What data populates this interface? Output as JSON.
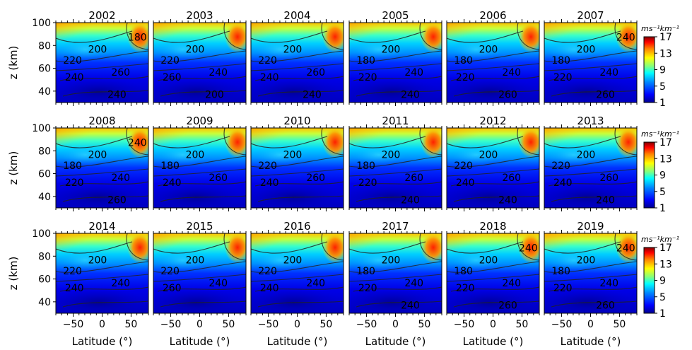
{
  "chart_data": {
    "type": "heatmap",
    "description_units": "zonal-mean field vs latitude and altitude with temperature contours",
    "years": [
      "2002",
      "2003",
      "2004",
      "2005",
      "2006",
      "2007",
      "2008",
      "2009",
      "2010",
      "2011",
      "2012",
      "2013",
      "2014",
      "2015",
      "2016",
      "2017",
      "2018",
      "2019"
    ],
    "rows": 3,
    "cols": 6,
    "xlabel": "Latitude (°)",
    "ylabel": "z (km)",
    "xlim": [
      -80,
      80
    ],
    "ylim": [
      30,
      100
    ],
    "xticks": [
      "-50",
      "0",
      "50"
    ],
    "yticks": [
      "40",
      "60",
      "80",
      "100"
    ],
    "colorbar": {
      "unit": "ms⁻¹km⁻¹",
      "ticks": [
        "1",
        "5",
        "9",
        "13",
        "17"
      ],
      "range": [
        1,
        17
      ],
      "colormap": [
        "#00008f",
        "#0000ff",
        "#0080ff",
        "#00ffff",
        "#80ff80",
        "#ffff00",
        "#ff8000",
        "#ff0000",
        "#800000"
      ]
    },
    "contour_labels": [
      {
        "year": "2002",
        "labels": [
          "200",
          "220",
          "240",
          "260",
          "240",
          "180"
        ]
      },
      {
        "year": "2003",
        "labels": [
          "200",
          "220",
          "260",
          "240",
          "200"
        ]
      },
      {
        "year": "2004",
        "labels": [
          "200",
          "220",
          "240",
          "260",
          "240"
        ]
      },
      {
        "year": "2005",
        "labels": [
          "200",
          "180",
          "220",
          "240",
          "240"
        ]
      },
      {
        "year": "2006",
        "labels": [
          "200",
          "180",
          "220",
          "240",
          "260"
        ]
      },
      {
        "year": "2007",
        "labels": [
          "200",
          "180",
          "220",
          "240",
          "260",
          "240"
        ]
      },
      {
        "year": "2008",
        "labels": [
          "200",
          "180",
          "220",
          "240",
          "260",
          "240"
        ]
      },
      {
        "year": "2009",
        "labels": [
          "200",
          "180",
          "240",
          "260"
        ]
      },
      {
        "year": "2010",
        "labels": [
          "200",
          "220",
          "240",
          "260"
        ]
      },
      {
        "year": "2011",
        "labels": [
          "200",
          "180",
          "220",
          "260",
          "240"
        ]
      },
      {
        "year": "2012",
        "labels": [
          "200",
          "220",
          "240",
          "260",
          "240"
        ]
      },
      {
        "year": "2013",
        "labels": [
          "200",
          "220",
          "240",
          "260",
          "240"
        ]
      },
      {
        "year": "2014",
        "labels": [
          "200",
          "220",
          "240",
          "240"
        ]
      },
      {
        "year": "2015",
        "labels": [
          "200",
          "220",
          "260",
          "240"
        ]
      },
      {
        "year": "2016",
        "labels": [
          "200",
          "220",
          "240",
          "240"
        ]
      },
      {
        "year": "2017",
        "labels": [
          "200",
          "180",
          "220",
          "240",
          "240"
        ]
      },
      {
        "year": "2018",
        "labels": [
          "200",
          "180",
          "220",
          "240",
          "260",
          "240"
        ]
      },
      {
        "year": "2019",
        "labels": [
          "200",
          "180",
          "220",
          "240",
          "260",
          "240"
        ]
      }
    ],
    "grid": false,
    "legend": "colorbar-right-of-each-row"
  }
}
